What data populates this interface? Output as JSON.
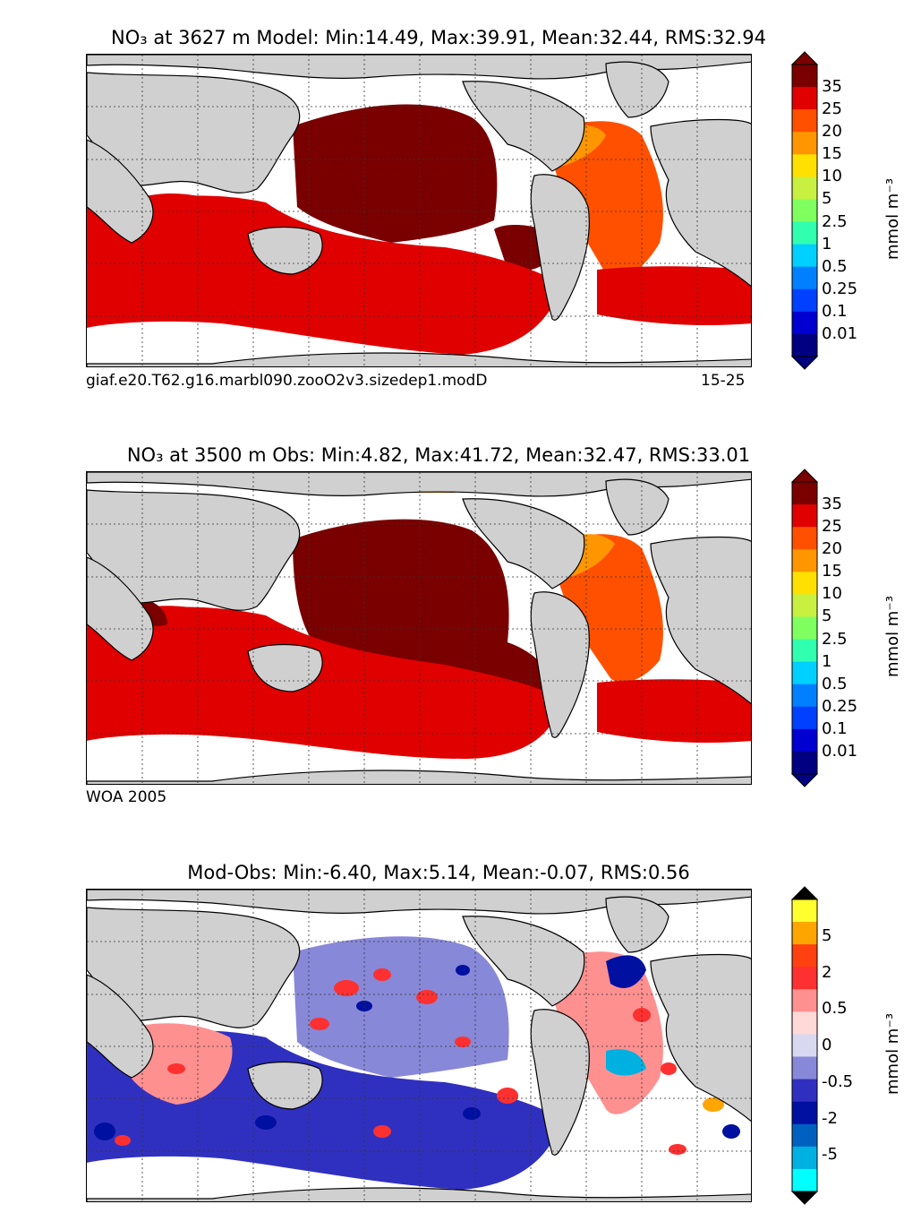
{
  "panels": [
    {
      "title": "NO₃ at 3627 m Model: Min:14.49, Max:39.91, Mean:32.44, RMS:32.94",
      "footer_left": "giaf.e20.T62.g16.marbl090.zooO2v3.sizedep1.modD",
      "footer_right": "15-25",
      "unit": "mmol m⁻³",
      "colorbar_labels": [
        "35",
        "25",
        "20",
        "15",
        "10",
        "5",
        "2.5",
        "1",
        "0.5",
        "0.25",
        "0.1",
        "0.01"
      ],
      "colorbar_colors": [
        "#7a0000",
        "#e00000",
        "#ff5000",
        "#ff9600",
        "#ffe000",
        "#c8f040",
        "#80ff60",
        "#30ffb0",
        "#00d0ff",
        "#0080ff",
        "#0040ff",
        "#0000d0",
        "#000080"
      ],
      "extend_colors": [
        "#7a0000",
        "#000080"
      ]
    },
    {
      "title": "NO₃ at 3500 m Obs: Min:4.82, Max:41.72, Mean:32.47, RMS:33.01",
      "footer_left": "WOA 2005",
      "footer_right": "",
      "unit": "mmol m⁻³",
      "colorbar_labels": [
        "35",
        "25",
        "20",
        "15",
        "10",
        "5",
        "2.5",
        "1",
        "0.5",
        "0.25",
        "0.1",
        "0.01"
      ],
      "colorbar_colors": [
        "#7a0000",
        "#e00000",
        "#ff5000",
        "#ff9600",
        "#ffe000",
        "#c8f040",
        "#80ff60",
        "#30ffb0",
        "#00d0ff",
        "#0080ff",
        "#0040ff",
        "#0000d0",
        "#000080"
      ],
      "extend_colors": [
        "#7a0000",
        "#000080"
      ]
    },
    {
      "title": "Mod-Obs: Min:-6.40, Max:5.14, Mean:-0.07, RMS:0.56",
      "footer_left": "",
      "footer_right": "",
      "unit": "mmol m⁻³",
      "colorbar_labels": [
        "5",
        "2",
        "0.5",
        "0",
        "-0.5",
        "-2",
        "-5"
      ],
      "colorbar_colors": [
        "#ffff30",
        "#ffa500",
        "#ff4010",
        "#ff3030",
        "#ff9090",
        "#ffd8d8",
        "#d8d8f0",
        "#8888d8",
        "#3030c0",
        "#0010a0",
        "#0060c0",
        "#00b0e0",
        "#00ffff"
      ],
      "extend_colors": [
        "#000000",
        "#000000"
      ]
    }
  ],
  "chart_data": [
    {
      "type": "heatmap",
      "title": "NO₃ at 3627 m Model: Min:14.49, Max:39.91, Mean:32.44, RMS:32.94",
      "variable": "NO3",
      "depth": "3627 m",
      "source": "Model",
      "stats": {
        "min": 14.49,
        "max": 39.91,
        "mean": 32.44,
        "rms": 32.94
      },
      "colorbar_levels": [
        0.01,
        0.1,
        0.25,
        0.5,
        1,
        2.5,
        5,
        10,
        15,
        20,
        25,
        35
      ],
      "colorbar_extend": "both",
      "unit": "mmol m⁻³",
      "projection": "global lat-lon map"
    },
    {
      "type": "heatmap",
      "title": "NO₃ at 3500 m Obs: Min:4.82, Max:41.72, Mean:32.47, RMS:33.01",
      "variable": "NO3",
      "depth": "3500 m",
      "source": "Obs",
      "stats": {
        "min": 4.82,
        "max": 41.72,
        "mean": 32.47,
        "rms": 33.01
      },
      "colorbar_levels": [
        0.01,
        0.1,
        0.25,
        0.5,
        1,
        2.5,
        5,
        10,
        15,
        20,
        25,
        35
      ],
      "colorbar_extend": "both",
      "unit": "mmol m⁻³",
      "projection": "global lat-lon map"
    },
    {
      "type": "heatmap",
      "title": "Mod-Obs: Min:-6.40, Max:5.14, Mean:-0.07, RMS:0.56",
      "variable": "NO3 difference",
      "stats": {
        "min": -6.4,
        "max": 5.14,
        "mean": -0.07,
        "rms": 0.56
      },
      "colorbar_levels": [
        -5,
        -2,
        -0.5,
        0,
        0.5,
        2,
        5
      ],
      "colorbar_extend": "both",
      "unit": "mmol m⁻³",
      "projection": "global lat-lon map"
    }
  ]
}
